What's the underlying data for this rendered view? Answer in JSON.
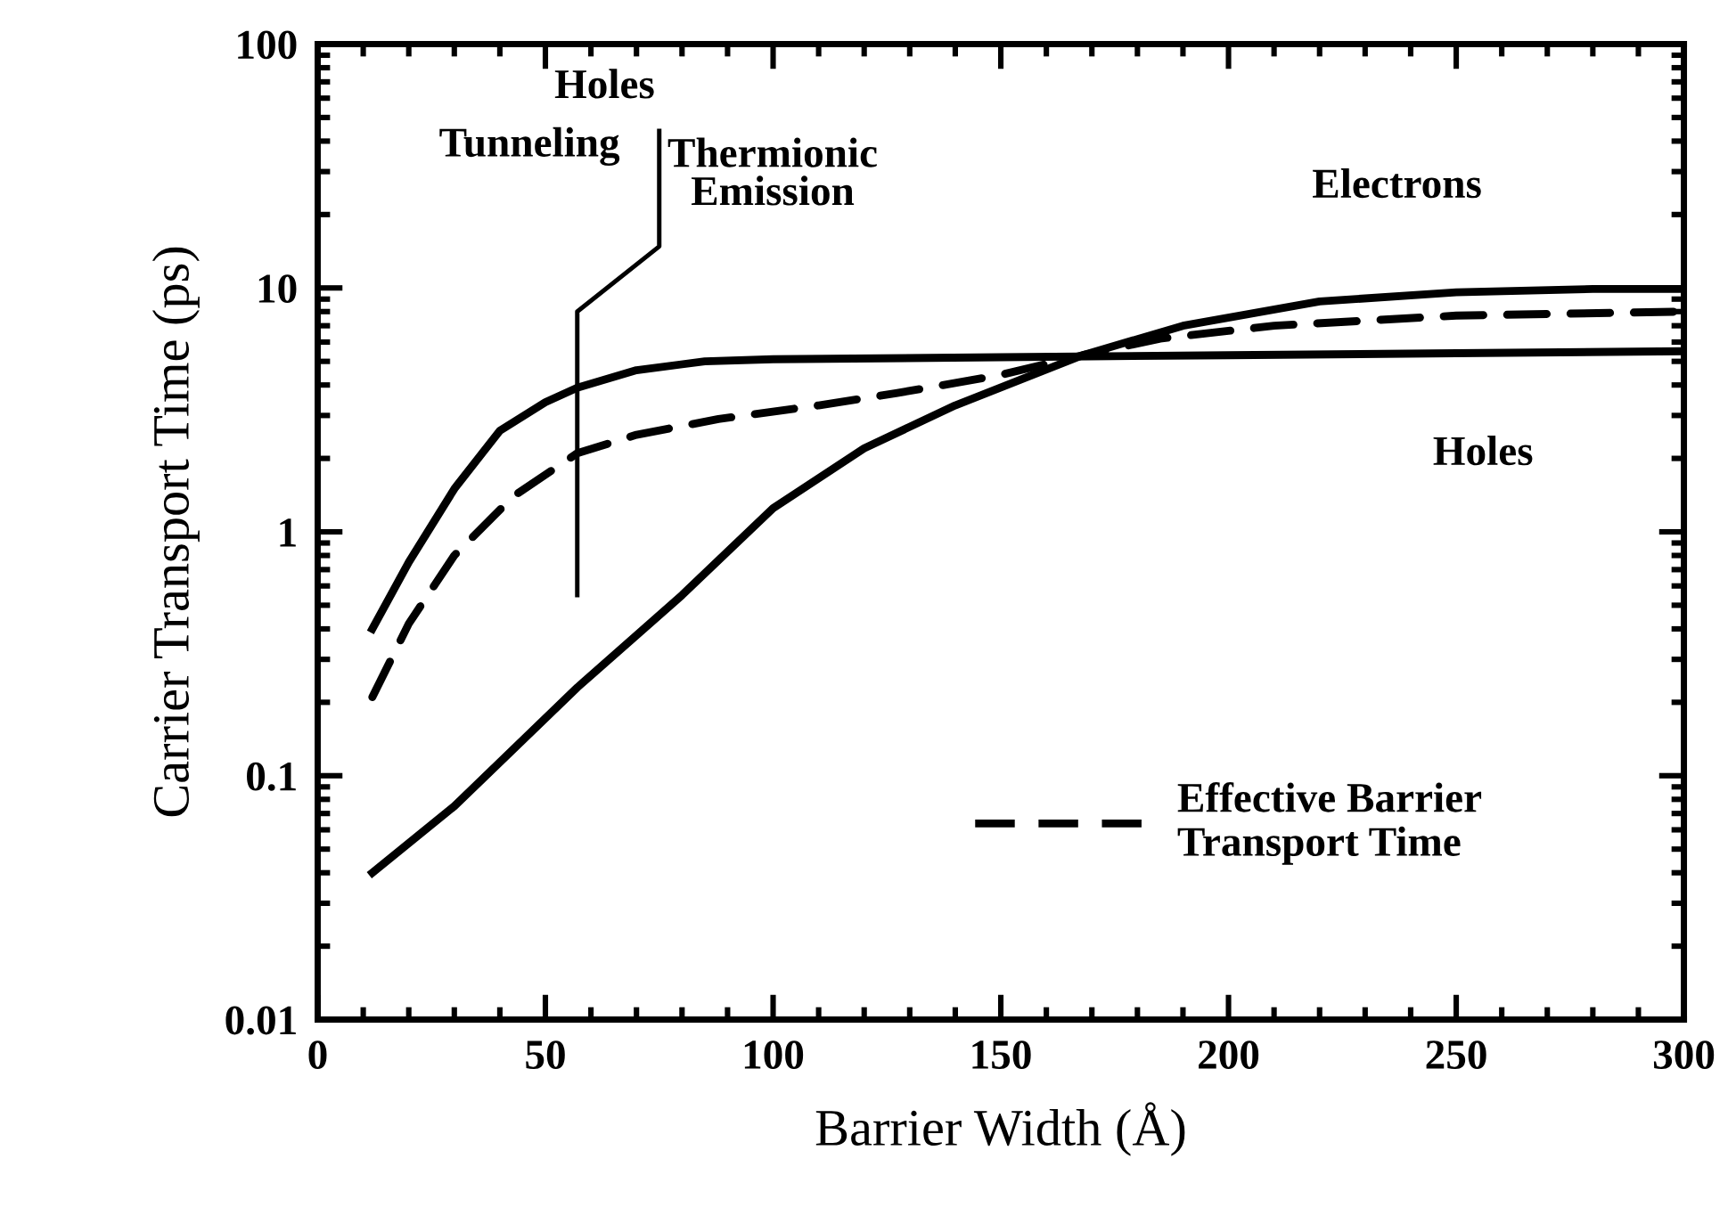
{
  "chart_data": {
    "type": "line",
    "xlabel": "Barrier Width (Å)",
    "ylabel": "Carrier Transport Time (ps)",
    "log": "y",
    "xlim": [
      0,
      300
    ],
    "xticks": [
      0,
      50,
      100,
      150,
      200,
      250,
      300
    ],
    "ylim": [
      0.01,
      100
    ],
    "yticks": [
      0.01,
      0.1,
      1,
      10,
      100
    ],
    "grid": false,
    "legend": "bottom right",
    "marker": "none",
    "series": [
      {
        "color": "#000000",
        "line_style": "solid",
        "x": [
          12,
          20,
          30,
          40,
          50,
          57,
          70,
          85,
          100,
          150,
          200,
          250,
          300
        ],
        "values": [
          0.4,
          0.75,
          1.5,
          2.6,
          3.4,
          3.9,
          4.6,
          5.0,
          5.1,
          5.2,
          5.3,
          5.4,
          5.5
        ]
      },
      {
        "color": "#000000",
        "line_style": "solid",
        "x": [
          12,
          30,
          57,
          80,
          100,
          120,
          140,
          168,
          190,
          220,
          250,
          280,
          300
        ],
        "values": [
          0.04,
          0.075,
          0.23,
          0.55,
          1.25,
          2.2,
          3.3,
          5.3,
          7.0,
          8.8,
          9.6,
          9.9,
          9.9
        ]
      },
      {
        "name": "Effective Barrier\nTransport Time",
        "color": "#000000",
        "line_style": "dashed",
        "x": [
          12,
          20,
          30,
          43,
          57,
          70,
          88,
          110,
          127,
          150,
          168,
          185,
          210,
          250,
          300
        ],
        "values": [
          0.21,
          0.42,
          0.8,
          1.4,
          2.1,
          2.5,
          2.9,
          3.3,
          3.7,
          4.4,
          5.3,
          6.2,
          7.0,
          7.7,
          8.0
        ]
      },
      {
        "color": "#000000",
        "line_style": "solid",
        "x": [
          57,
          57,
          75,
          75
        ],
        "values": [
          0.55,
          8,
          14.8,
          44
        ]
      }
    ],
    "annotations": [
      "Holes",
      "Tunneling",
      "Thermionic\nEmission",
      "Electrons",
      "Holes"
    ]
  }
}
